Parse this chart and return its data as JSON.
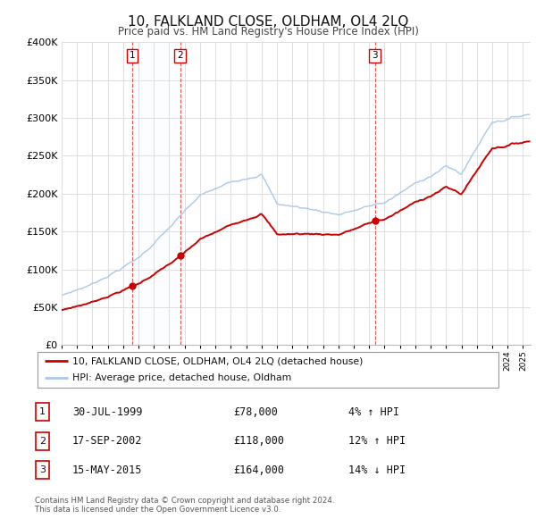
{
  "title": "10, FALKLAND CLOSE, OLDHAM, OL4 2LQ",
  "subtitle": "Price paid vs. HM Land Registry's House Price Index (HPI)",
  "ylim": [
    0,
    400000
  ],
  "yticks": [
    0,
    50000,
    100000,
    150000,
    200000,
    250000,
    300000,
    350000,
    400000
  ],
  "ytick_labels": [
    "£0",
    "£50K",
    "£100K",
    "£150K",
    "£200K",
    "£250K",
    "£300K",
    "£350K",
    "£400K"
  ],
  "xlim_start": 1995.0,
  "xlim_end": 2025.5,
  "property_color": "#cc0000",
  "hpi_color": "#aac8e8",
  "background_color": "#ffffff",
  "grid_color": "#dddddd",
  "transactions": [
    {
      "num": 1,
      "date_str": "30-JUL-1999",
      "date_x": 1999.58,
      "price": 78000,
      "label": "1",
      "pct": "4%",
      "arrow": "↑"
    },
    {
      "num": 2,
      "date_str": "17-SEP-2002",
      "date_x": 2002.71,
      "price": 118000,
      "label": "2",
      "pct": "12%",
      "arrow": "↑"
    },
    {
      "num": 3,
      "date_str": "15-MAY-2015",
      "date_x": 2015.37,
      "price": 164000,
      "label": "3",
      "pct": "14%",
      "arrow": "↓"
    }
  ],
  "legend_property": "10, FALKLAND CLOSE, OLDHAM, OL4 2LQ (detached house)",
  "legend_hpi": "HPI: Average price, detached house, Oldham",
  "footnote": "Contains HM Land Registry data © Crown copyright and database right 2024.\nThis data is licensed under the Open Government Licence v3.0.",
  "shade_color": "#ddeeff",
  "vline_color": "#cc0000"
}
